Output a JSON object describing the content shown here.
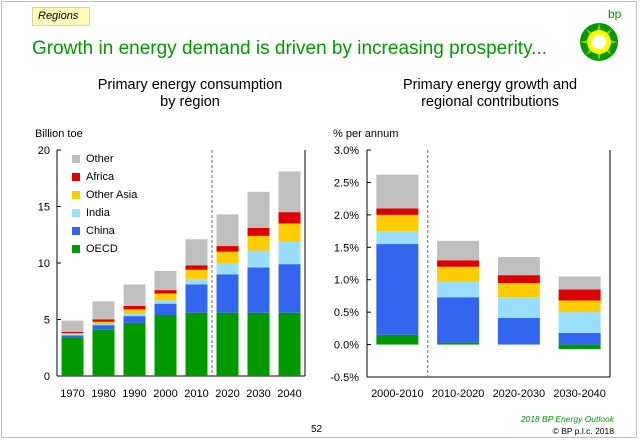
{
  "section_tag": "Regions",
  "headline": "Growth in energy demand is driven by increasing prosperity...",
  "logo_text": "bp",
  "footer": {
    "source": "2018 BP Energy Outlook",
    "copyright": "© BP p.l.c. 2018",
    "page_number": "52"
  },
  "colors": {
    "OECD": "#009900",
    "China": "#3366ee",
    "India": "#99ddff",
    "Other Asia": "#ffcc00",
    "Africa": "#dd0000",
    "Other": "#bfbfbf",
    "headline": "#009900"
  },
  "chart_data": [
    {
      "type": "bar",
      "stacked": true,
      "title": "Primary energy consumption by region",
      "title_lines": [
        "Primary energy consumption",
        "by region"
      ],
      "ylabel": "Billion toe",
      "ylim": [
        0,
        20
      ],
      "yticks": [
        "0",
        "5",
        "10",
        "15",
        "20"
      ],
      "grid": false,
      "legend_position": "top-left",
      "categories": [
        "1970",
        "1980",
        "1990",
        "2000",
        "2010",
        "2020",
        "2030",
        "2040"
      ],
      "divider_after": "2010",
      "legend": [
        "Other",
        "Africa",
        "Other Asia",
        "India",
        "China",
        "OECD"
      ],
      "series": [
        {
          "name": "OECD",
          "values": [
            3.4,
            4.1,
            4.7,
            5.4,
            5.6,
            5.6,
            5.6,
            5.6
          ]
        },
        {
          "name": "China",
          "values": [
            0.2,
            0.4,
            0.6,
            1.0,
            2.5,
            3.4,
            4.0,
            4.3
          ]
        },
        {
          "name": "India",
          "values": [
            0.1,
            0.1,
            0.2,
            0.3,
            0.5,
            1.0,
            1.5,
            2.0
          ]
        },
        {
          "name": "Other Asia",
          "values": [
            0.1,
            0.2,
            0.4,
            0.6,
            0.8,
            1.0,
            1.3,
            1.6
          ]
        },
        {
          "name": "Africa",
          "values": [
            0.1,
            0.2,
            0.3,
            0.3,
            0.4,
            0.5,
            0.7,
            1.0
          ]
        },
        {
          "name": "Other",
          "values": [
            1.0,
            1.6,
            1.9,
            1.7,
            2.3,
            2.8,
            3.2,
            3.6
          ]
        }
      ]
    },
    {
      "type": "bar",
      "stacked": true,
      "title": "Primary energy growth and regional contributions",
      "title_lines": [
        "Primary energy growth and",
        "regional contributions"
      ],
      "ylabel": "% per annum",
      "ylim": [
        -0.5,
        3.0
      ],
      "yticks": [
        "-0.5%",
        "0.0%",
        "0.5%",
        "1.0%",
        "1.5%",
        "2.0%",
        "2.5%",
        "3.0%"
      ],
      "grid": false,
      "categories": [
        "2000-2010",
        "2010-2020",
        "2020-2030",
        "2030-2040"
      ],
      "divider_after": "2000-2010",
      "series": [
        {
          "name": "OECD",
          "values": [
            0.15,
            0.03,
            0.0,
            -0.07
          ]
        },
        {
          "name": "China",
          "values": [
            1.4,
            0.7,
            0.41,
            0.18
          ]
        },
        {
          "name": "India",
          "values": [
            0.2,
            0.25,
            0.32,
            0.32
          ]
        },
        {
          "name": "Other Asia",
          "values": [
            0.25,
            0.22,
            0.22,
            0.18
          ]
        },
        {
          "name": "Africa",
          "values": [
            0.1,
            0.1,
            0.12,
            0.17
          ]
        },
        {
          "name": "Other",
          "values": [
            0.52,
            0.3,
            0.28,
            0.2
          ]
        }
      ]
    }
  ]
}
